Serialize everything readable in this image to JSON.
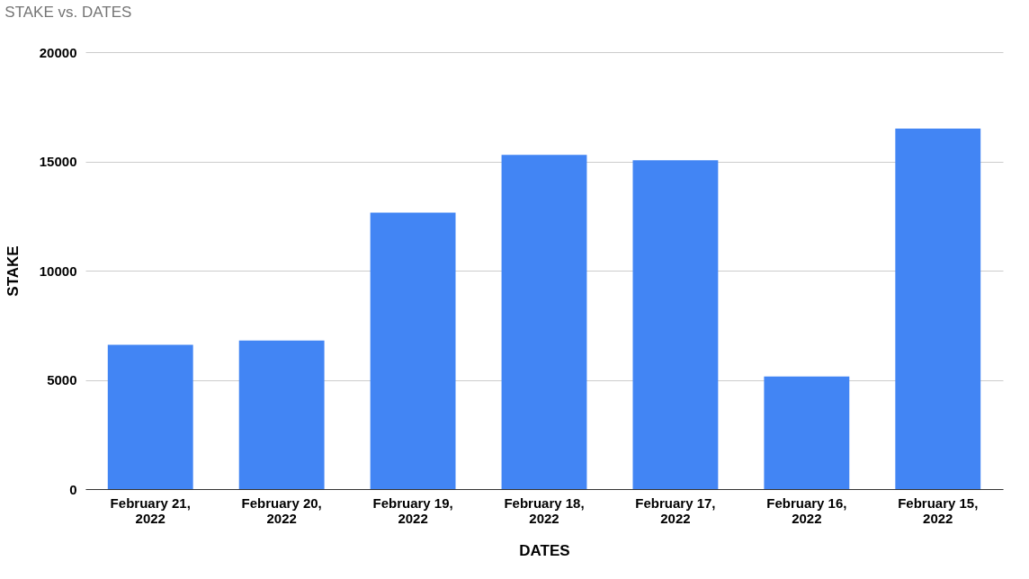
{
  "chart_data": {
    "type": "bar",
    "title": "STAKE vs. DATES",
    "xlabel": "DATES",
    "ylabel": "STAKE",
    "categories": [
      "February 21, 2022",
      "February 20, 2022",
      "February 19, 2022",
      "February 18, 2022",
      "February 17, 2022",
      "February 16, 2022",
      "February 15, 2022"
    ],
    "values": [
      6600,
      6800,
      12650,
      15300,
      15050,
      5150,
      16500
    ],
    "color": "#4285f4",
    "ylim": [
      0,
      20000
    ],
    "yticks": [
      0,
      5000,
      10000,
      15000,
      20000
    ],
    "grid": "y"
  }
}
